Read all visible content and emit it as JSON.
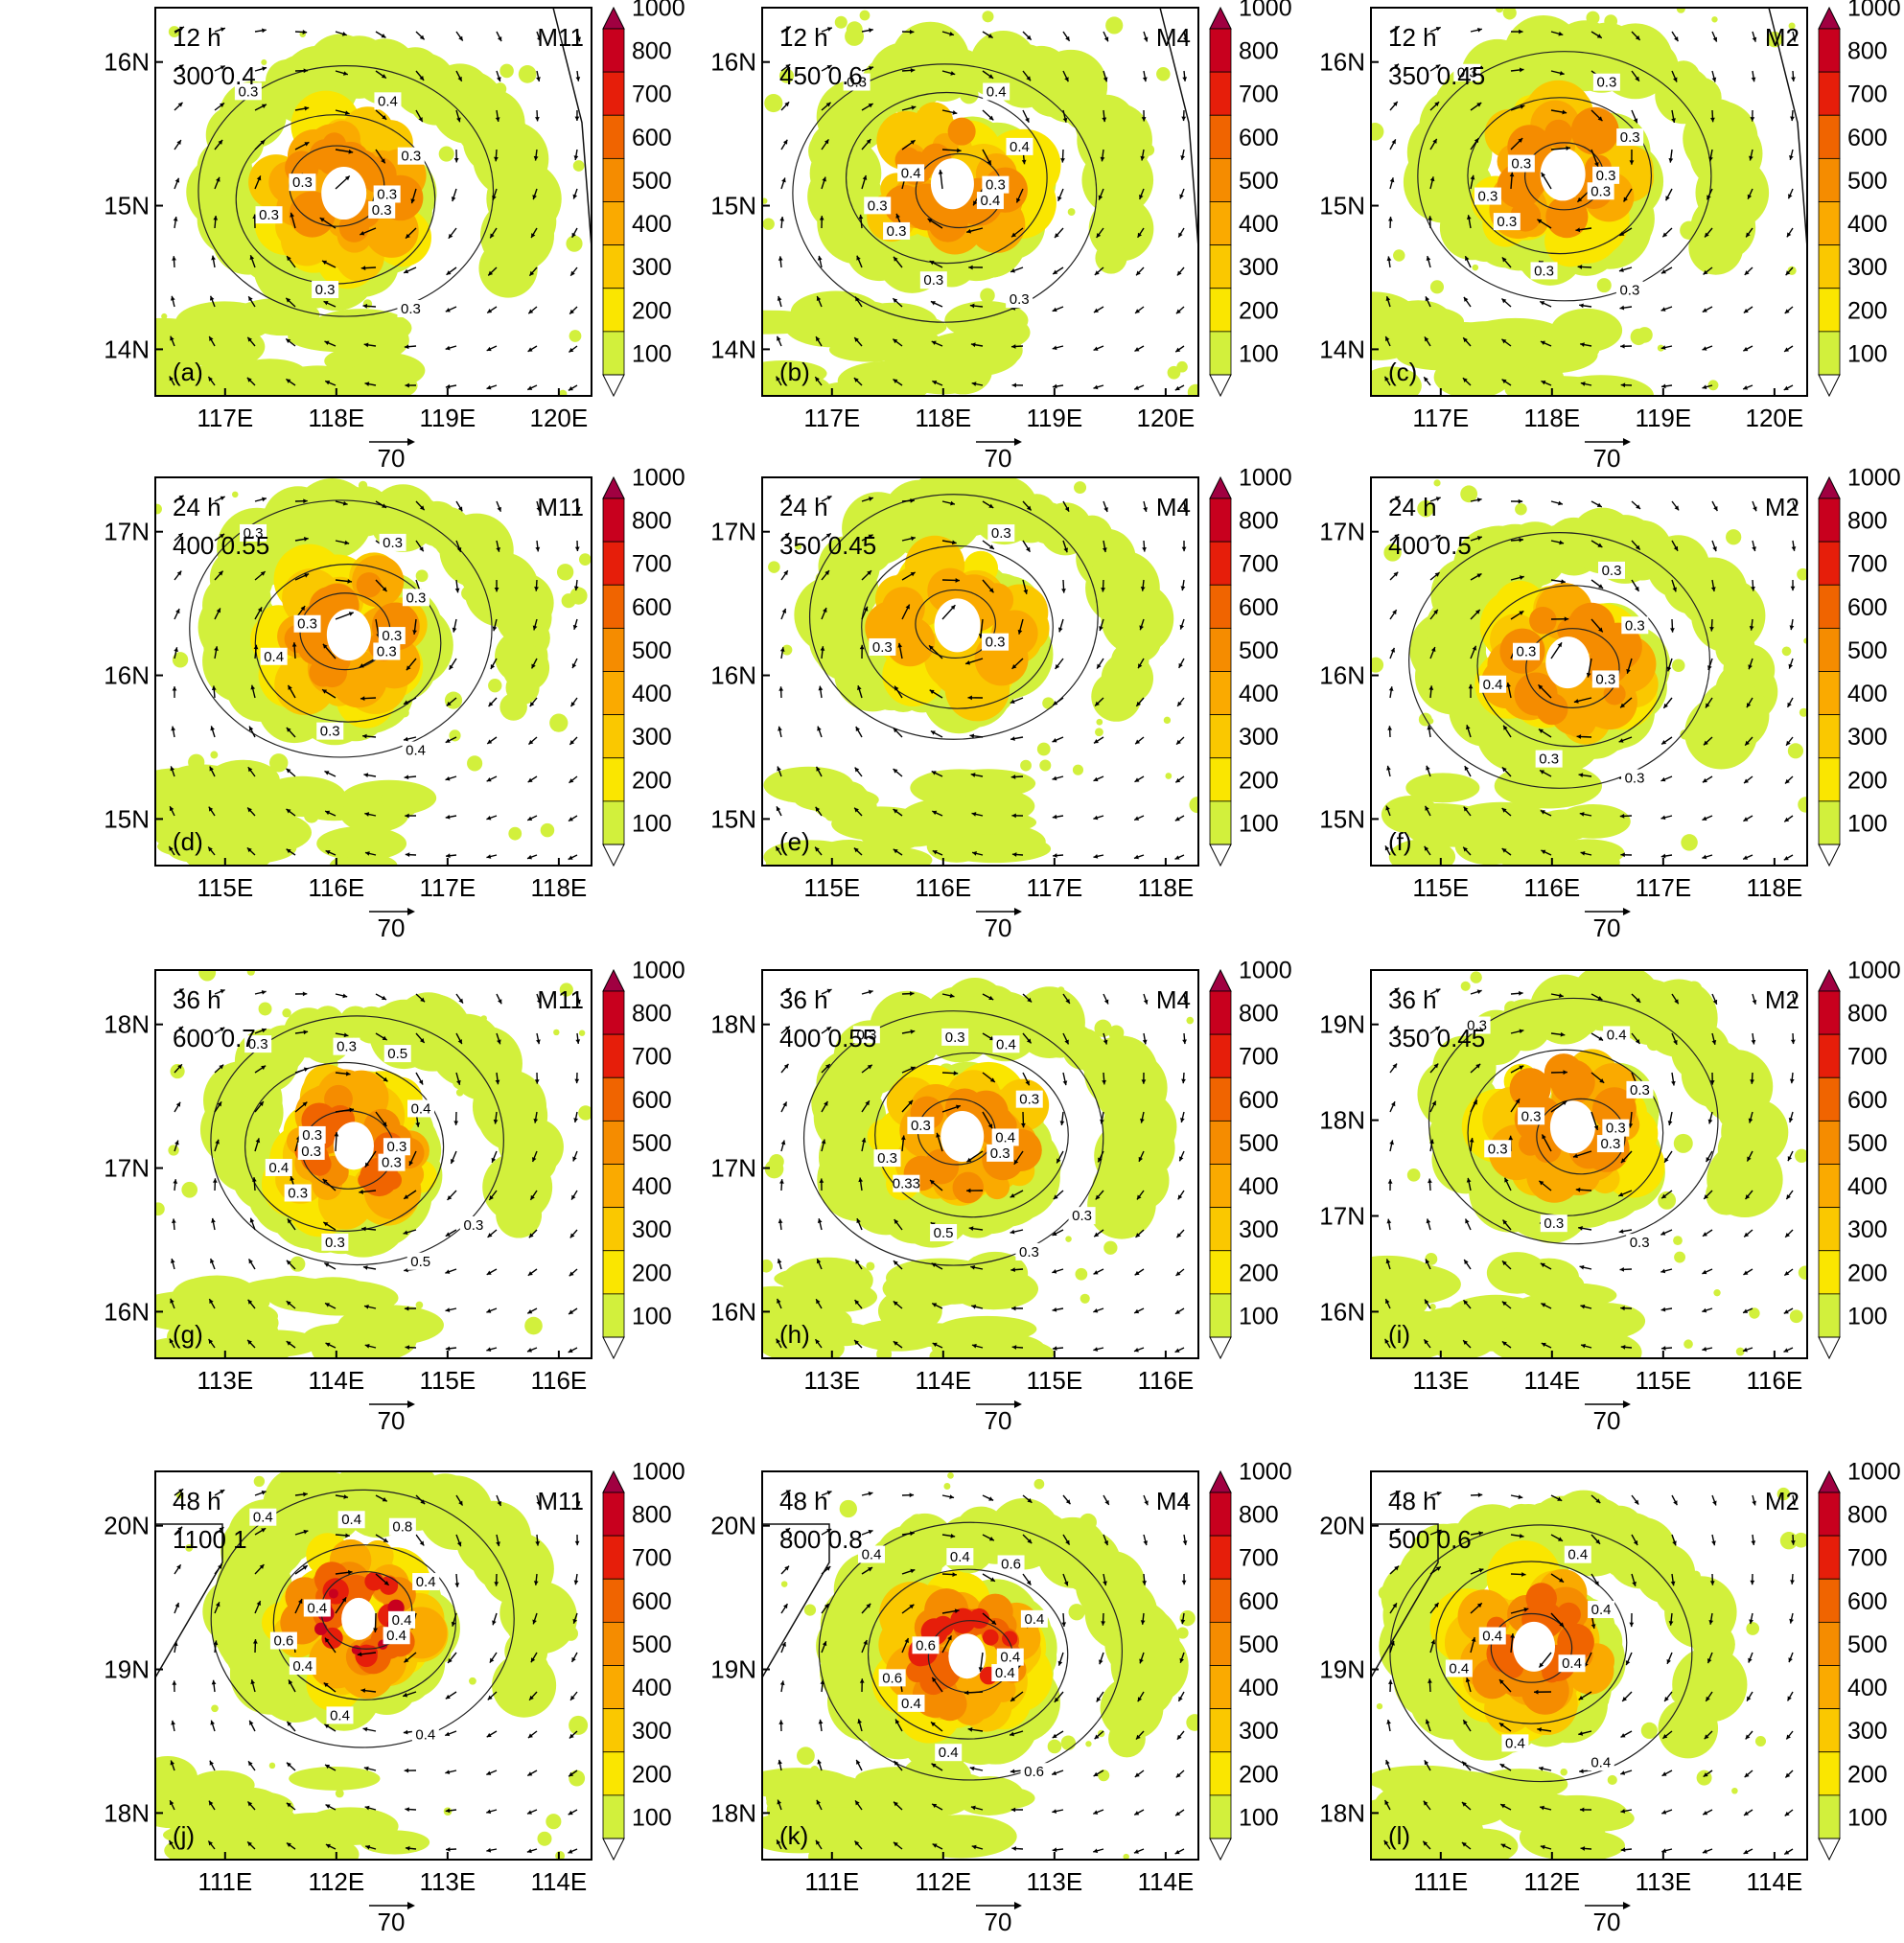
{
  "chart_data": {
    "type": "heatmap",
    "colorbar": {
      "levels": [
        "100",
        "200",
        "300",
        "400",
        "500",
        "600",
        "700",
        "800",
        "1000"
      ],
      "colors": [
        "#ffffff",
        "#d2f03c",
        "#fae600",
        "#fac800",
        "#faaa00",
        "#f58c00",
        "#f06400",
        "#e61e0a",
        "#c8001e",
        "#a00041"
      ]
    },
    "vector_reference": "70",
    "panels": [
      {
        "time": "12 h",
        "model": "M11",
        "panel_label": "(a)",
        "values": "300  0.4",
        "lon_ticks": [
          "117E",
          "118E",
          "119E",
          "120E"
        ],
        "lat_ticks": [
          "14N",
          "15N",
          "16N"
        ],
        "contour_labels": [
          "0.3",
          "0.3",
          "0.4",
          "0.3",
          "0.3",
          "0.3",
          "0.3",
          "0.3",
          "0.3"
        ],
        "intensity": 0.45
      },
      {
        "time": "12 h",
        "model": "M4",
        "panel_label": "(b)",
        "values": "450  0.6",
        "lon_ticks": [
          "117E",
          "118E",
          "119E",
          "120E"
        ],
        "lat_ticks": [
          "14N",
          "15N",
          "16N"
        ],
        "contour_labels": [
          "0.4",
          "0.3",
          "0.4",
          "0.3",
          "0.4",
          "0.4",
          "0.3",
          "0.3",
          "0.3",
          "0.3"
        ],
        "intensity": 0.55
      },
      {
        "time": "12 h",
        "model": "M2",
        "panel_label": "(c)",
        "values": "350  0.45",
        "lon_ticks": [
          "117E",
          "118E",
          "119E",
          "120E"
        ],
        "lat_ticks": [
          "14N",
          "15N",
          "16N"
        ],
        "contour_labels": [
          "0.3",
          "0.3",
          "0.3",
          "0.3",
          "0.3",
          "0.3",
          "0.3",
          "0.3",
          "0.3",
          "0.3"
        ],
        "intensity": 0.45
      },
      {
        "time": "24 h",
        "model": "M11",
        "panel_label": "(d)",
        "values": "400  0.55",
        "lon_ticks": [
          "115E",
          "116E",
          "117E",
          "118E"
        ],
        "lat_ticks": [
          "15N",
          "16N",
          "17N"
        ],
        "contour_labels": [
          "0.3",
          "0.4",
          "0.3",
          "0.4",
          "0.3",
          "0.3",
          "0.3",
          "0.3",
          "0.3"
        ],
        "intensity": 0.5
      },
      {
        "time": "24 h",
        "model": "M4",
        "panel_label": "(e)",
        "values": "350  0.45",
        "lon_ticks": [
          "115E",
          "116E",
          "117E",
          "118E"
        ],
        "lat_ticks": [
          "15N",
          "16N",
          "17N"
        ],
        "contour_labels": [
          "0.3",
          "0.3",
          "0.3"
        ],
        "intensity": 0.4
      },
      {
        "time": "24 h",
        "model": "M2",
        "panel_label": "(f)",
        "values": "400  0.5",
        "lon_ticks": [
          "115E",
          "116E",
          "117E",
          "118E"
        ],
        "lat_ticks": [
          "15N",
          "16N",
          "17N"
        ],
        "contour_labels": [
          "0.3",
          "0.4",
          "0.3",
          "0.3",
          "0.3",
          "0.3",
          "0.3"
        ],
        "intensity": 0.5
      },
      {
        "time": "36 h",
        "model": "M11",
        "panel_label": "(g)",
        "values": "600  0.7",
        "lon_ticks": [
          "113E",
          "114E",
          "115E",
          "116E"
        ],
        "lat_ticks": [
          "16N",
          "17N",
          "18N"
        ],
        "contour_labels": [
          "0.3",
          "0.4",
          "0.5",
          "0.5",
          "0.3",
          "0.4",
          "0.3",
          "0.3",
          "0.3",
          "0.3",
          "0.3",
          "0.3",
          "0.3"
        ],
        "intensity": 0.7
      },
      {
        "time": "36 h",
        "model": "M4",
        "panel_label": "(h)",
        "values": "400  0.55",
        "lon_ticks": [
          "113E",
          "114E",
          "115E",
          "116E"
        ],
        "lat_ticks": [
          "16N",
          "17N",
          "18N"
        ],
        "contour_labels": [
          "0.3",
          "0.3",
          "0.4",
          "0.3",
          "0.3",
          "0.3",
          "0.5",
          "0.3",
          "0.4",
          "0.33",
          "0.3",
          "0.3"
        ],
        "intensity": 0.55
      },
      {
        "time": "36 h",
        "model": "M2",
        "panel_label": "(i)",
        "values": "350  0.45",
        "lon_ticks": [
          "113E",
          "114E",
          "115E",
          "116E"
        ],
        "lat_ticks": [
          "16N",
          "17N",
          "18N",
          "19N"
        ],
        "contour_labels": [
          "0.3",
          "0.3",
          "0.4",
          "0.3",
          "0.3",
          "0.3",
          "0.3",
          "0.3",
          "0.3"
        ],
        "intensity": 0.45
      },
      {
        "time": "48 h",
        "model": "M11",
        "panel_label": "(j)",
        "values": "1100  1",
        "lon_ticks": [
          "111E",
          "112E",
          "113E",
          "114E"
        ],
        "lat_ticks": [
          "18N",
          "19N",
          "20N"
        ],
        "contour_labels": [
          "0.4",
          "0.6",
          "0.8",
          "0.4",
          "0.4",
          "0.4",
          "0.4",
          "0.4",
          "0.4",
          "0.4",
          "0.4"
        ],
        "intensity": 1.0
      },
      {
        "time": "48 h",
        "model": "M4",
        "panel_label": "(k)",
        "values": "800  0.8",
        "lon_ticks": [
          "111E",
          "112E",
          "113E",
          "114E"
        ],
        "lat_ticks": [
          "18N",
          "19N",
          "20N"
        ],
        "contour_labels": [
          "0.4",
          "0.6",
          "0.6",
          "0.6",
          "0.6",
          "0.4",
          "0.4",
          "0.4",
          "0.4",
          "0.4",
          "0.4"
        ],
        "intensity": 0.85
      },
      {
        "time": "48 h",
        "model": "M2",
        "panel_label": "(l)",
        "values": "500  0.6",
        "lon_ticks": [
          "111E",
          "112E",
          "113E",
          "114E"
        ],
        "lat_ticks": [
          "18N",
          "19N",
          "20N"
        ],
        "contour_labels": [
          "0.4",
          "0.4",
          "0.4",
          "0.4",
          "0.4",
          "0.4",
          "0.4"
        ],
        "intensity": 0.6
      }
    ]
  }
}
